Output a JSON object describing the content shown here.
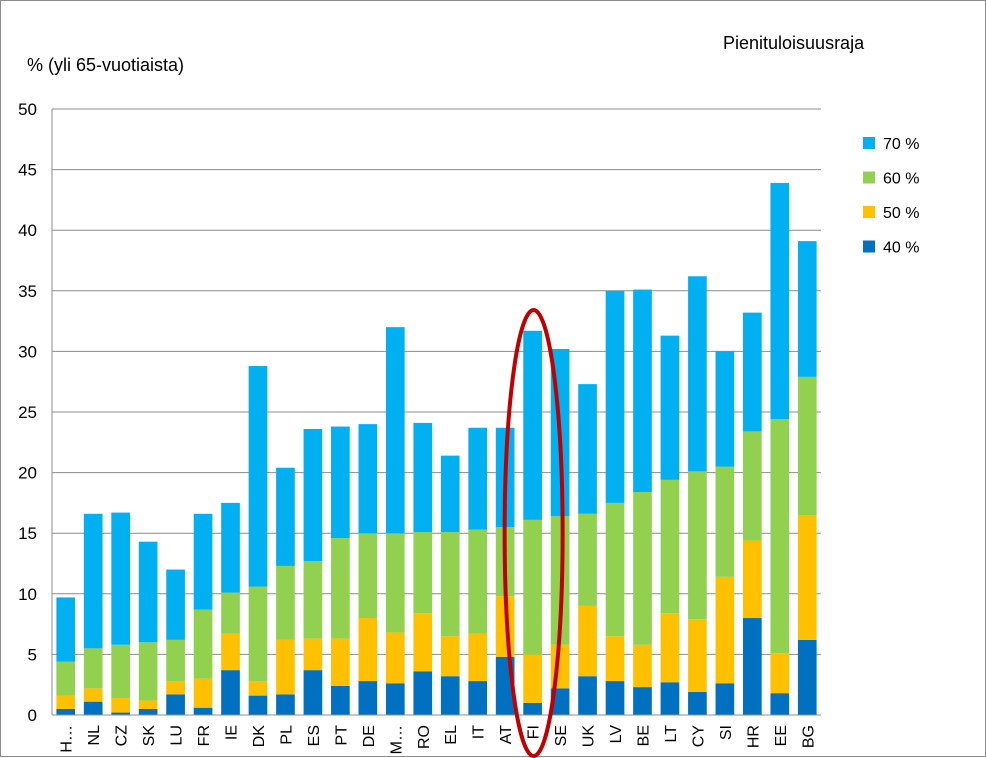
{
  "chart_data": {
    "type": "bar",
    "stacked": true,
    "title": "",
    "ylabel": "% (yli 65-vuotiaista)",
    "xlabel": "",
    "legend_title": "Pienituloisuusraja",
    "legend_position": "right",
    "ylim": [
      0,
      50
    ],
    "yticks": [
      0,
      5,
      10,
      15,
      20,
      25,
      30,
      35,
      40,
      45,
      50
    ],
    "grid": true,
    "highlight_category": "FI",
    "categories": [
      "H…",
      "NL",
      "CZ",
      "SK",
      "LU",
      "FR",
      "IE",
      "DK",
      "PL",
      "ES",
      "PT",
      "DE",
      "M…",
      "RO",
      "EL",
      "IT",
      "AT",
      "FI",
      "SE",
      "UK",
      "LV",
      "BE",
      "LT",
      "CY",
      "SI",
      "HR",
      "EE",
      "BG"
    ],
    "series": [
      {
        "name": "40 %",
        "color": "#0070C0",
        "values": [
          0.5,
          1.1,
          0.2,
          0.5,
          1.7,
          0.6,
          3.7,
          1.6,
          1.7,
          3.7,
          2.4,
          2.8,
          2.6,
          3.6,
          3.2,
          2.8,
          4.8,
          1.0,
          2.2,
          3.2,
          2.8,
          2.3,
          2.7,
          1.9,
          2.6,
          8.0,
          1.8,
          6.2
        ]
      },
      {
        "name": "50 %",
        "color": "#FFC000",
        "values": [
          1.1,
          1.1,
          1.2,
          0.7,
          1.1,
          2.4,
          3.0,
          1.2,
          4.5,
          2.6,
          3.9,
          5.2,
          4.2,
          4.8,
          3.3,
          3.9,
          5.0,
          4.0,
          3.6,
          5.8,
          3.7,
          3.5,
          5.7,
          6.0,
          8.8,
          6.4,
          3.3,
          10.3
        ]
      },
      {
        "name": "60 %",
        "color": "#92D050",
        "values": [
          2.8,
          3.3,
          4.4,
          4.8,
          3.4,
          5.7,
          3.4,
          7.8,
          6.1,
          6.4,
          8.3,
          7.0,
          8.2,
          6.7,
          8.6,
          8.6,
          5.7,
          11.1,
          10.6,
          7.6,
          11.0,
          12.6,
          11.0,
          12.2,
          9.1,
          9.0,
          19.3,
          11.4
        ]
      },
      {
        "name": "70 %",
        "color": "#00B0F0",
        "values": [
          5.3,
          11.1,
          10.9,
          8.3,
          5.8,
          7.9,
          7.4,
          18.2,
          8.1,
          10.9,
          9.2,
          9.0,
          17.0,
          9.0,
          6.3,
          8.4,
          8.2,
          15.6,
          13.8,
          10.7,
          17.5,
          16.7,
          11.9,
          16.1,
          9.5,
          9.8,
          19.5,
          11.2
        ]
      }
    ]
  }
}
